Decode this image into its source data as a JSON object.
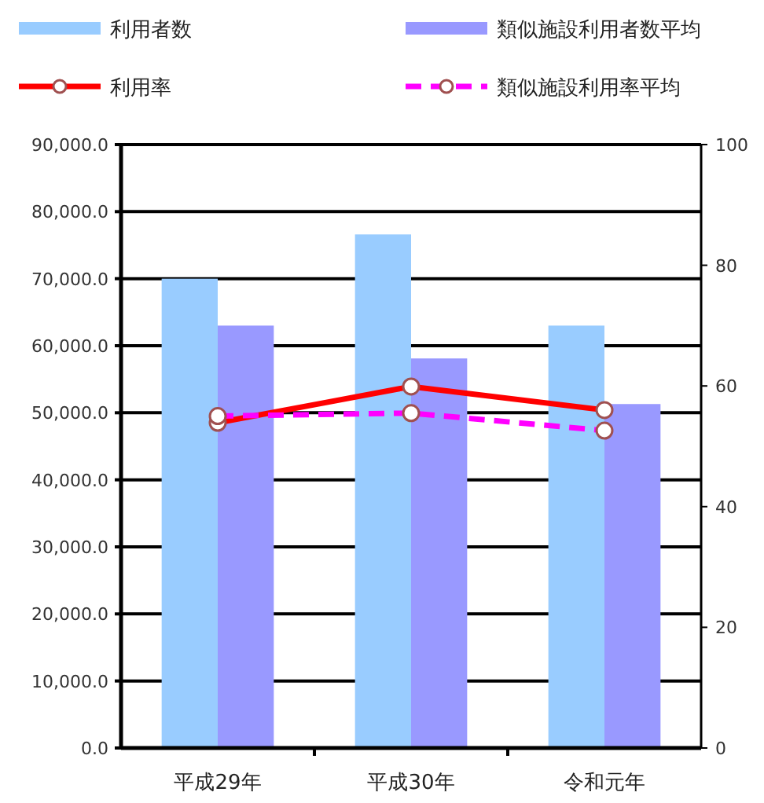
{
  "chart_data": {
    "type": "bar",
    "categories": [
      "平成29年",
      "平成30年",
      "令和元年"
    ],
    "series": [
      {
        "name": "利用者数",
        "color": "#99ccff",
        "values": [
          70000,
          76600,
          63000
        ]
      },
      {
        "name": "類似施設利用者数平均",
        "color": "#9999ff",
        "values": [
          63000,
          58100,
          51300
        ]
      },
      {
        "name": "利用率",
        "type": "line",
        "axis": "y2",
        "color": "#ff0000",
        "line_style": "solid",
        "marker": "circle",
        "values": [
          53.9,
          59.9,
          56.0
        ]
      },
      {
        "name": "類似施設利用率平均",
        "type": "line",
        "axis": "y2",
        "color": "#ff00ff",
        "line_style": "dashed",
        "marker": "circle",
        "values": [
          55.0,
          55.5,
          52.6
        ]
      }
    ],
    "ylim": [
      0,
      90000
    ],
    "yticks": [
      {
        "value": 0,
        "label": "0.0"
      },
      {
        "value": 10000,
        "label": "10,000.0"
      },
      {
        "value": 20000,
        "label": "20,000.0"
      },
      {
        "value": 30000,
        "label": "30,000.0"
      },
      {
        "value": 40000,
        "label": "40,000.0"
      },
      {
        "value": 50000,
        "label": "50,000.0"
      },
      {
        "value": 60000,
        "label": "60,000.0"
      },
      {
        "value": 70000,
        "label": "70,000.0"
      },
      {
        "value": 80000,
        "label": "80,000.0"
      },
      {
        "value": 90000,
        "label": "90,000.0"
      }
    ],
    "y2lim": [
      0,
      100
    ],
    "y2ticks": [
      0,
      20,
      40,
      60,
      80,
      100
    ],
    "grid": "y",
    "legend": "top"
  }
}
